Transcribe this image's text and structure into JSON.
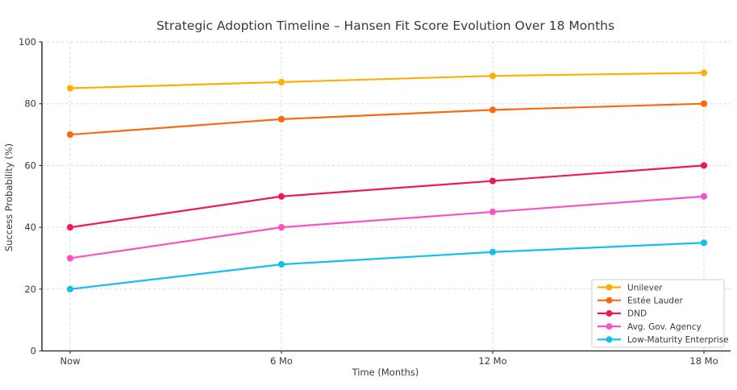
{
  "chart_data": {
    "type": "line",
    "title": "Strategic Adoption Timeline – Hansen Fit Score Evolution Over 18 Months",
    "xlabel": "Time (Months)",
    "ylabel": "Success Probability (%)",
    "categories": [
      "Now",
      "6 Mo",
      "12 Mo",
      "18 Mo"
    ],
    "series": [
      {
        "name": "Unilever",
        "color": "#FFAE05",
        "values": [
          85,
          87,
          89,
          90
        ]
      },
      {
        "name": "Estée Lauder",
        "color": "#F9690E",
        "values": [
          70,
          75,
          78,
          80
        ]
      },
      {
        "name": "DND",
        "color": "#EE1B4E",
        "values": [
          40,
          50,
          55,
          60
        ]
      },
      {
        "name": "Avg. Gov. Agency",
        "color": "#F852C5",
        "values": [
          30,
          40,
          45,
          50
        ]
      },
      {
        "name": "Low-Maturity Enterprise",
        "color": "#15BEF0",
        "values": [
          20,
          28,
          32,
          35
        ]
      }
    ],
    "ylim": [
      0,
      100
    ],
    "y_ticks": [
      0,
      20,
      40,
      60,
      80,
      100
    ],
    "grid": true,
    "legend_position": "lower right",
    "style": {
      "background": "#ffffff",
      "grid_color": "#d9d9d9",
      "axis_color": "#3c3c3c",
      "text_color": "#3a3a3a",
      "legend_border": "#cccccc",
      "legend_background": "#ffffff"
    }
  }
}
